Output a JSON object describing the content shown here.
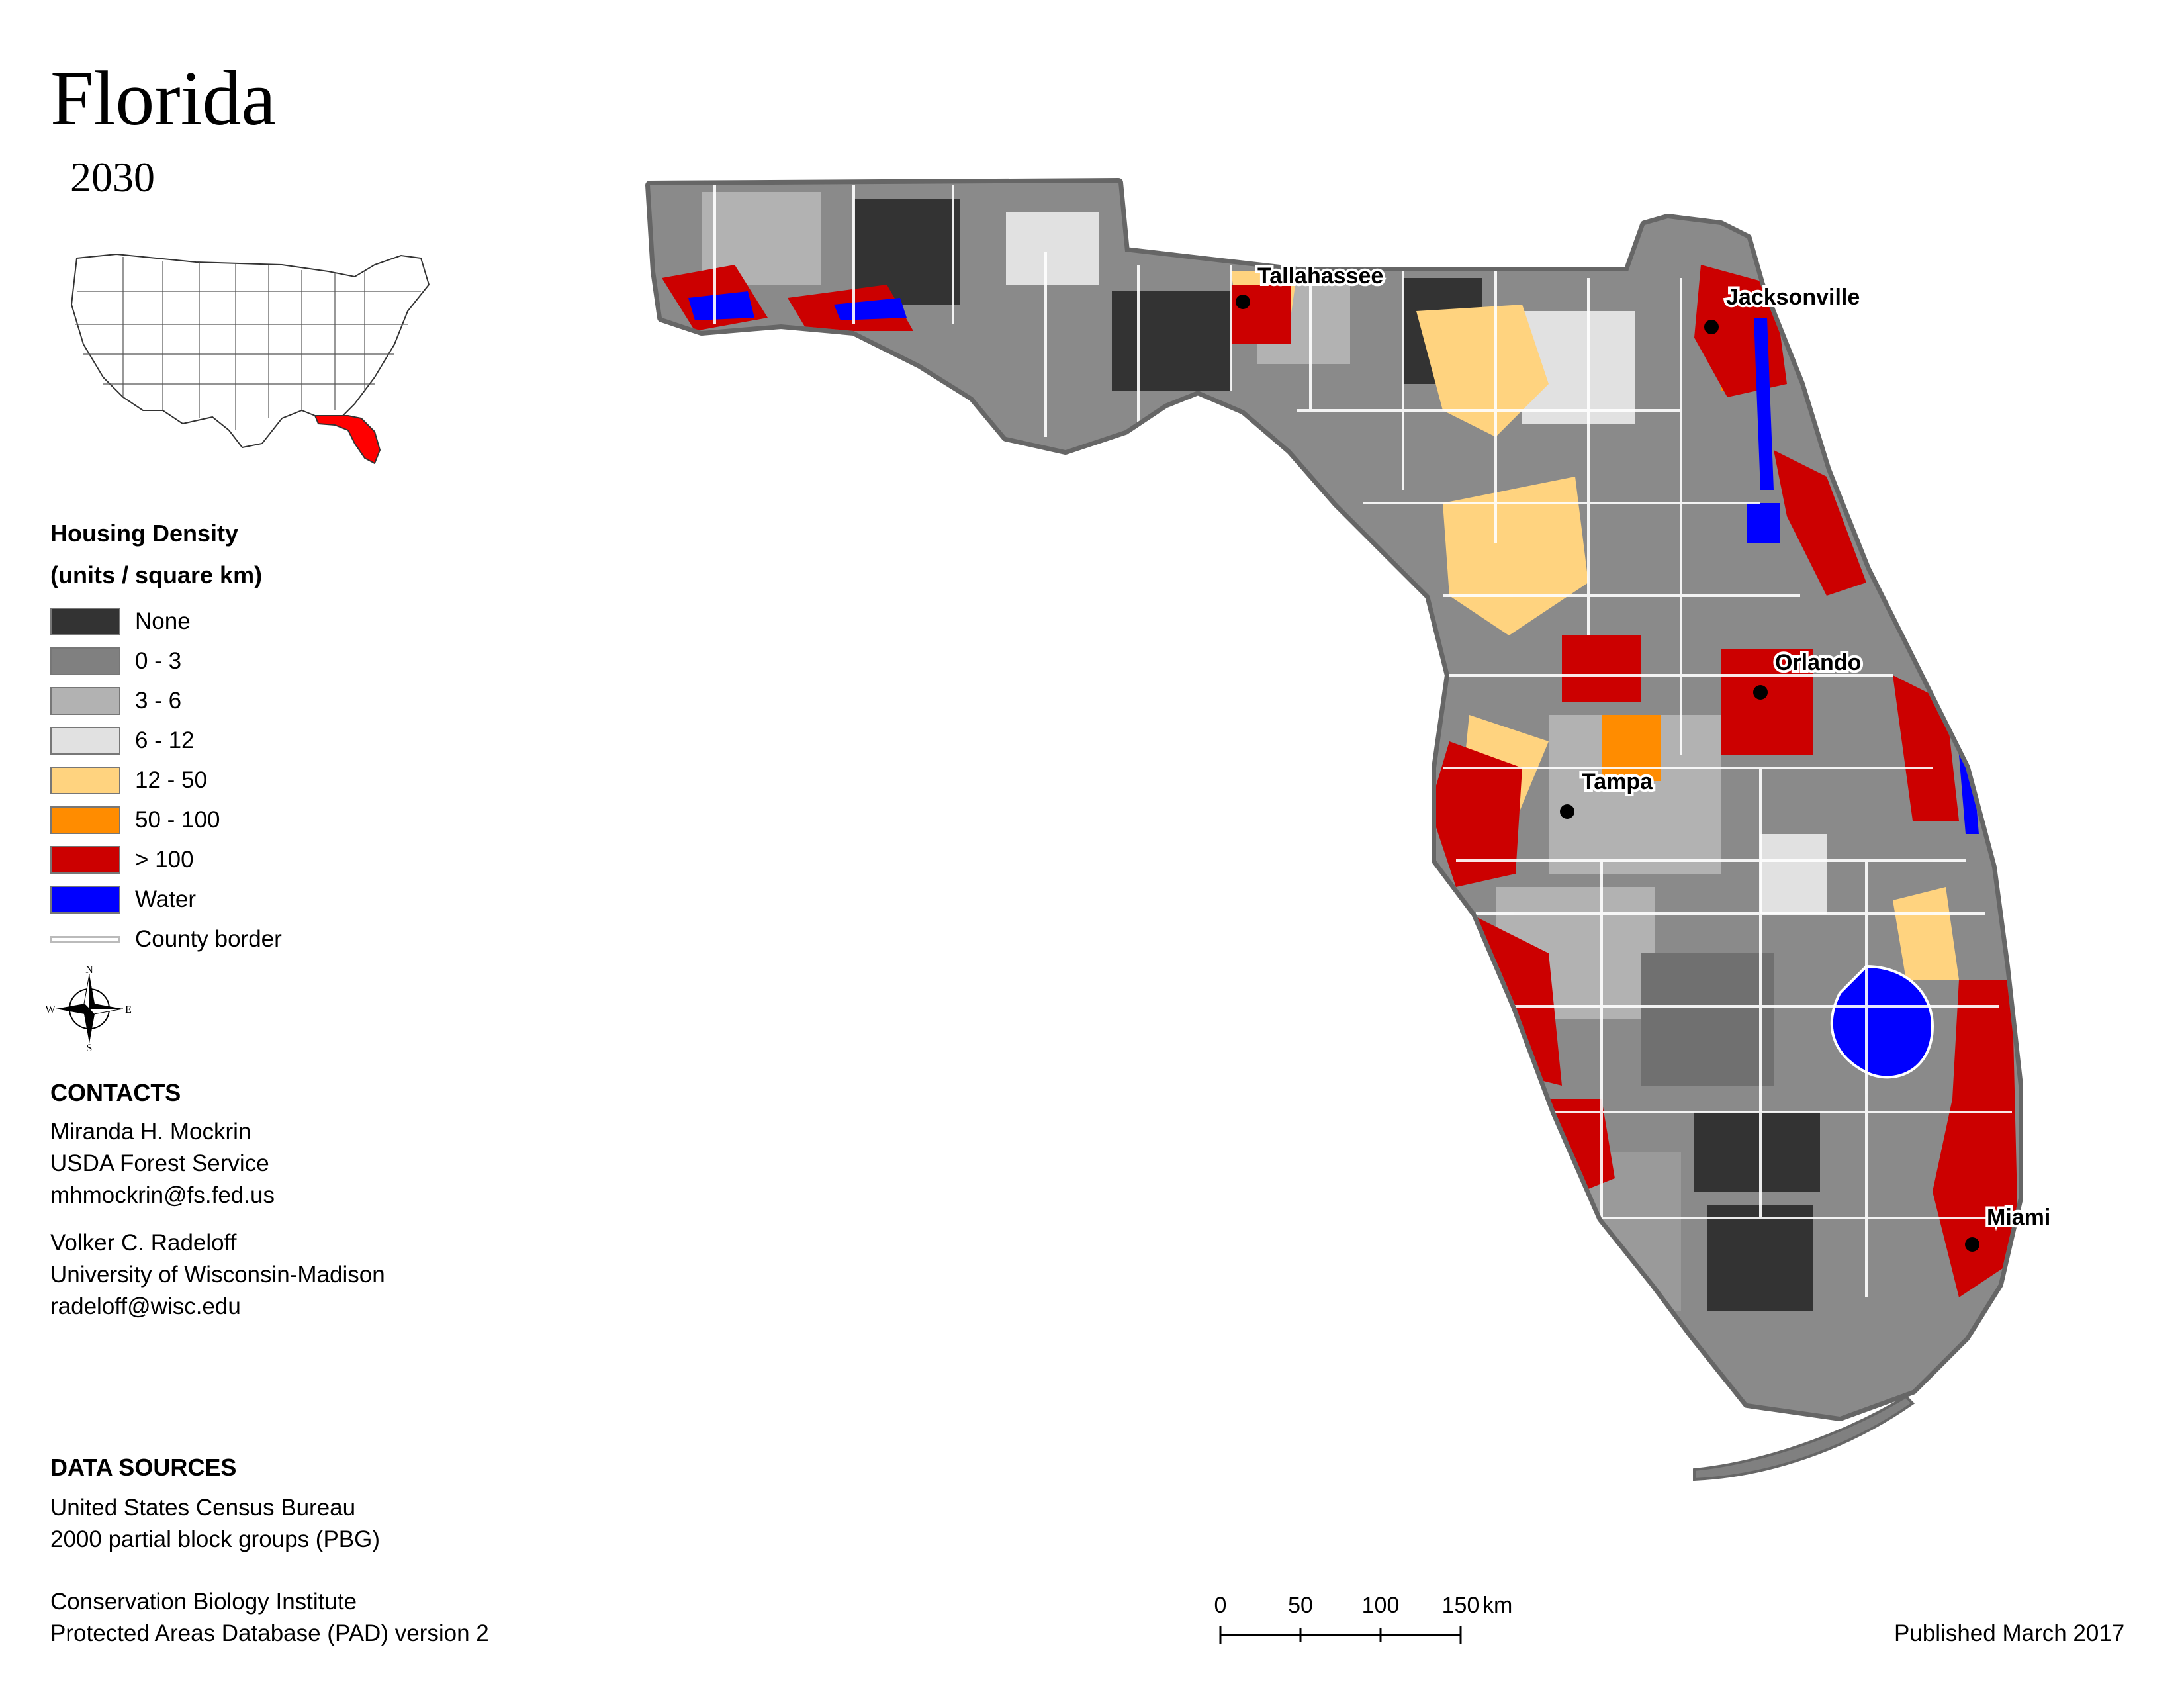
{
  "title": "Florida",
  "year": "2030",
  "legend": {
    "title_line1": "Housing Density",
    "title_line2": "(units / square km)",
    "items": [
      {
        "label": "None",
        "color": "#333333"
      },
      {
        "label": "0 - 3",
        "color": "#808080"
      },
      {
        "label": "3 - 6",
        "color": "#b2b2b2"
      },
      {
        "label": "6 - 12",
        "color": "#e1e1e1"
      },
      {
        "label": "12 - 50",
        "color": "#ffd37f"
      },
      {
        "label": "50 - 100",
        "color": "#ff8c00"
      },
      {
        "label": "> 100",
        "color": "#cc0000"
      },
      {
        "label": "Water",
        "color": "#0000ff"
      }
    ],
    "county_border_label": "County border"
  },
  "compass": {
    "n": "N",
    "s": "S",
    "e": "E",
    "w": "W"
  },
  "contacts": {
    "heading": "CONTACTS",
    "person1": {
      "name": "Miranda H. Mockrin",
      "org": "USDA Forest Service",
      "email": "mhmockrin@fs.fed.us"
    },
    "person2": {
      "name": "Volker C. Radeloff",
      "org": "University of Wisconsin-Madison",
      "email": "radeloff@wisc.edu"
    }
  },
  "data_sources": {
    "heading": "DATA SOURCES",
    "source1_line1": "United States Census Bureau",
    "source1_line2": "2000 partial block groups (PBG)",
    "source2_line1": "Conservation Biology Institute",
    "source2_line2": "Protected Areas Database (PAD) version 2"
  },
  "cities": [
    "Tallahassee",
    "Jacksonville",
    "Orlando",
    "Tampa",
    "Miami"
  ],
  "scale_bar": {
    "ticks": [
      "0",
      "50",
      "100",
      "150"
    ],
    "unit": "km"
  },
  "published": "Published March 2017"
}
